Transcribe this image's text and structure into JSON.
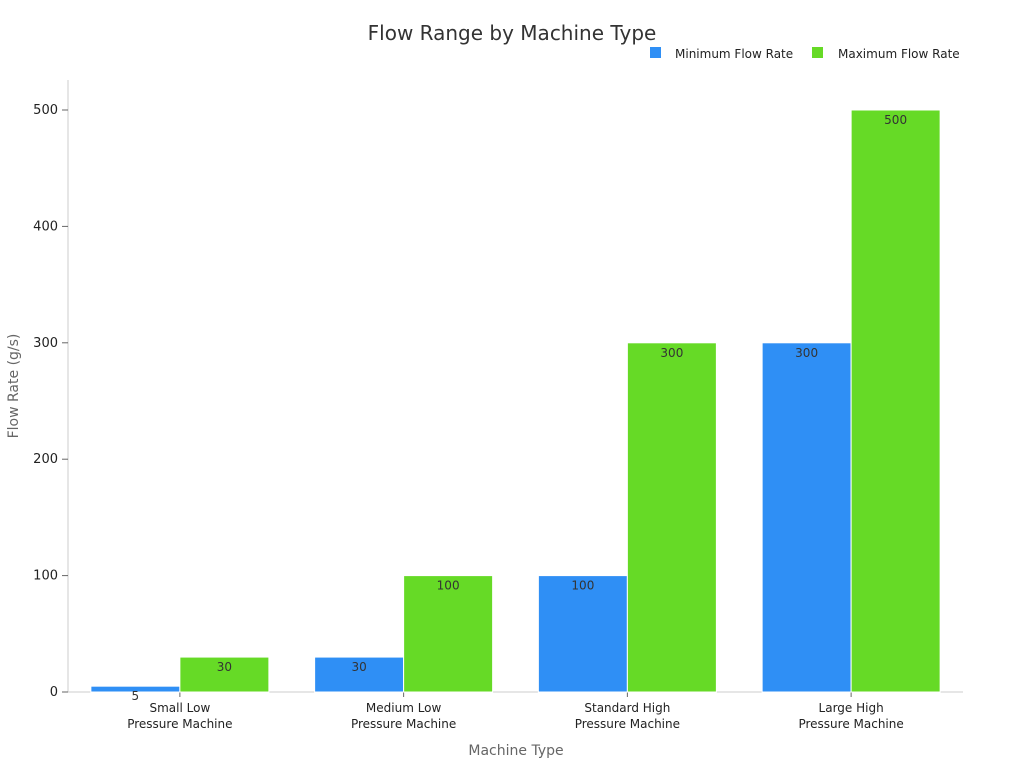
{
  "chart_data": {
    "type": "bar",
    "title": "Flow Range by Machine Type",
    "xlabel": "Machine Type",
    "ylabel": "Flow Rate (g/s)",
    "ylim": [
      0,
      525
    ],
    "yticks": [
      0,
      100,
      200,
      300,
      400,
      500
    ],
    "categories": [
      [
        "Small Low",
        "Pressure Machine"
      ],
      [
        "Medium Low",
        "Pressure Machine"
      ],
      [
        "Standard High",
        "Pressure Machine"
      ],
      [
        "Large High",
        "Pressure Machine"
      ]
    ],
    "series": [
      {
        "name": "Minimum Flow Rate",
        "color": "#2f8ff5",
        "values": [
          5,
          30,
          100,
          300
        ]
      },
      {
        "name": "Maximum Flow Rate",
        "color": "#66da26",
        "values": [
          30,
          100,
          300,
          500
        ]
      }
    ],
    "legend": "top-right",
    "grid": false
  }
}
